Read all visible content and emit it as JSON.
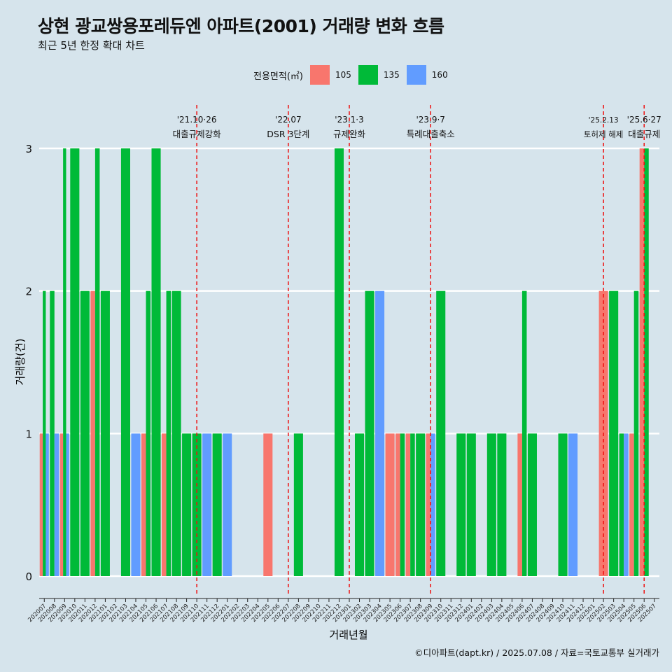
{
  "title": "상현 광교쌍용포레듀엔 아파트(2001) 거래량 변화 흐름",
  "subtitle": "최근 5년 한정 확대 차트",
  "caption": "©디아파트(dapt.kr) / 2025.07.08 / 자료=국토교통부 실거래가",
  "chart_data": {
    "type": "bar",
    "xlabel": "거래년월",
    "ylabel": "거래량(건)",
    "ylim": [
      0,
      3
    ],
    "yticks": [
      0,
      1,
      2,
      3
    ],
    "grid": true,
    "legend_title": "전용면적(㎡)",
    "legend_position": "top",
    "colors": {
      "105": "#f8766d",
      "135": "#00ba38",
      "160": "#619cff"
    },
    "categories": [
      "202007",
      "202008",
      "202009",
      "202010",
      "202011",
      "202012",
      "202101",
      "202102",
      "202103",
      "202104",
      "202105",
      "202106",
      "202107",
      "202108",
      "202109",
      "202110",
      "202111",
      "202112",
      "202201",
      "202202",
      "202203",
      "202204",
      "202205",
      "202206",
      "202207",
      "202208",
      "202209",
      "202210",
      "202211",
      "202212",
      "202301",
      "202302",
      "202303",
      "202304",
      "202305",
      "202306",
      "202307",
      "202308",
      "202309",
      "202310",
      "202311",
      "202312",
      "202401",
      "202402",
      "202403",
      "202404",
      "202405",
      "202406",
      "202407",
      "202408",
      "202409",
      "202410",
      "202411",
      "202412",
      "202501",
      "202502",
      "202503",
      "202504",
      "202505",
      "202506",
      "202507"
    ],
    "series": [
      {
        "name": "105",
        "values": [
          1,
          0,
          1,
          0,
          0,
          2,
          0,
          0,
          0,
          0,
          1,
          0,
          1,
          0,
          0,
          0,
          0,
          0,
          0,
          0,
          0,
          0,
          1,
          0,
          0,
          0,
          0,
          0,
          0,
          0,
          0,
          0,
          0,
          0,
          1,
          1,
          1,
          0,
          1,
          0,
          0,
          0,
          0,
          0,
          0,
          0,
          0,
          1,
          0,
          0,
          0,
          0,
          0,
          0,
          0,
          2,
          0,
          0,
          1,
          3,
          0
        ]
      },
      {
        "name": "135",
        "values": [
          2,
          2,
          3,
          3,
          2,
          3,
          2,
          0,
          3,
          0,
          2,
          3,
          2,
          2,
          1,
          1,
          0,
          1,
          0,
          0,
          0,
          0,
          0,
          0,
          0,
          1,
          0,
          0,
          0,
          3,
          0,
          1,
          2,
          0,
          0,
          1,
          1,
          1,
          0,
          2,
          0,
          1,
          1,
          0,
          1,
          1,
          0,
          2,
          1,
          0,
          0,
          1,
          0,
          0,
          0,
          0,
          2,
          1,
          2,
          3,
          0
        ]
      },
      {
        "name": "160",
        "values": [
          1,
          1,
          1,
          0,
          0,
          0,
          0,
          0,
          0,
          1,
          0,
          0,
          0,
          0,
          0,
          0,
          1,
          0,
          1,
          0,
          0,
          0,
          0,
          0,
          0,
          0,
          0,
          0,
          0,
          0,
          0,
          0,
          0,
          2,
          0,
          0,
          0,
          0,
          1,
          0,
          0,
          0,
          0,
          0,
          0,
          0,
          0,
          0,
          0,
          0,
          0,
          0,
          1,
          0,
          0,
          0,
          0,
          1,
          0,
          0,
          0
        ]
      }
    ],
    "annotations": [
      {
        "x": "202110",
        "date": "'21.10·26",
        "label": "대출규제강화"
      },
      {
        "x": "202207",
        "date": "'22.07",
        "label": "DSR 3단계"
      },
      {
        "x": "202301",
        "date": "'23.1·3",
        "label": "규제완화"
      },
      {
        "x": "202309",
        "date": "'23.9·7",
        "label": "특례대출축소"
      },
      {
        "x": "202502",
        "date": "'25.2.13",
        "label": "토허제 해제"
      },
      {
        "x": "202506",
        "date": "'25.6·27",
        "label": "대출규제"
      }
    ]
  }
}
